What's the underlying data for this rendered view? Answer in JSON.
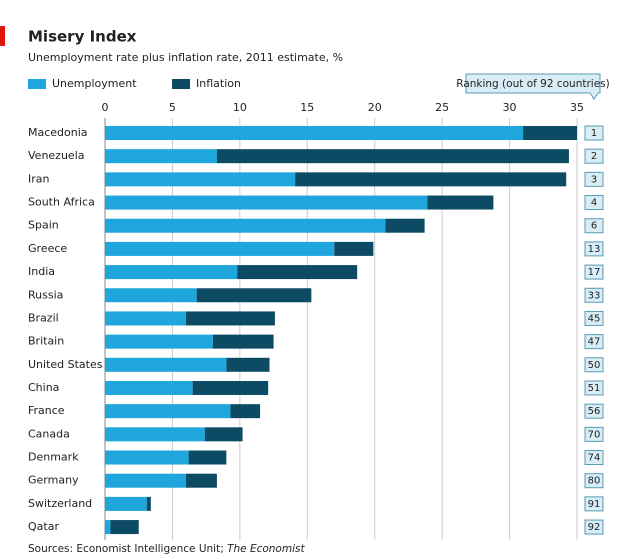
{
  "chart_data": {
    "type": "stacked_bar_horizontal",
    "title": "Misery Index",
    "subtitle": "Unemployment rate plus inflation rate, 2011 estimate, %",
    "categories": [
      "Macedonia",
      "Venezuela",
      "Iran",
      "South Africa",
      "Spain",
      "Greece",
      "India",
      "Russia",
      "Brazil",
      "Britain",
      "United States",
      "China",
      "France",
      "Canada",
      "Denmark",
      "Germany",
      "Switzerland",
      "Qatar"
    ],
    "series": [
      {
        "name": "Unemployment",
        "color": "#1fa6dc",
        "values": [
          31.0,
          8.3,
          14.1,
          23.9,
          20.8,
          17.0,
          9.8,
          6.8,
          6.0,
          8.0,
          9.0,
          6.5,
          9.3,
          7.4,
          6.2,
          6.0,
          3.1,
          0.4
        ]
      },
      {
        "name": "Inflation",
        "color": "#0d4a63",
        "values": [
          4.0,
          26.1,
          20.1,
          4.9,
          2.9,
          2.9,
          8.9,
          8.5,
          6.6,
          4.5,
          3.2,
          5.6,
          2.2,
          2.8,
          2.8,
          2.3,
          0.3,
          2.1
        ]
      }
    ],
    "ranking_title": "Ranking (out of 92 countries)",
    "rankings": [
      1,
      2,
      3,
      4,
      6,
      13,
      17,
      33,
      45,
      47,
      50,
      51,
      56,
      70,
      74,
      80,
      91,
      92
    ],
    "xlim": [
      0,
      35
    ],
    "xticks": [
      0,
      5,
      10,
      15,
      20,
      25,
      30,
      35
    ],
    "grid": true,
    "sources": "Sources: Economist Intelligence Unit; ",
    "sources_italic": "The Economist"
  }
}
